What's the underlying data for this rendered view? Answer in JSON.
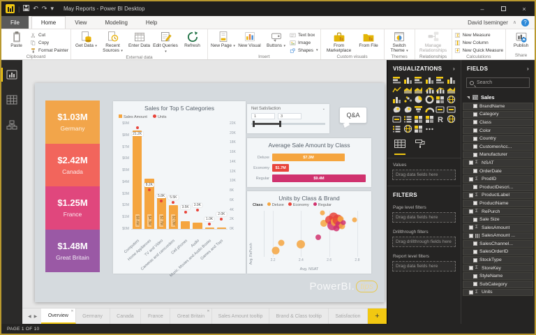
{
  "window": {
    "title": "May Reports - Power BI Desktop"
  },
  "titlebar": {
    "quick_access_icons": [
      "power-bi-logo",
      "save-icon",
      "undo-icon",
      "redo-icon",
      "customize-toolbar-caret"
    ],
    "controls": [
      "minimize",
      "maximize",
      "close"
    ]
  },
  "menubar": {
    "items": [
      "File",
      "Home",
      "View",
      "Modeling",
      "Help"
    ],
    "active": "Home",
    "user": "David Iseminger"
  },
  "ribbon": {
    "groups": [
      {
        "label": "Clipboard",
        "items": [
          {
            "type": "big",
            "label": "Paste",
            "icon": "paste"
          },
          {
            "type": "stack",
            "items": [
              {
                "label": "Cut",
                "icon": "cut"
              },
              {
                "label": "Copy",
                "icon": "copy"
              },
              {
                "label": "Format Painter",
                "icon": "format-painter"
              }
            ]
          }
        ]
      },
      {
        "label": "External data",
        "items": [
          {
            "type": "big",
            "label": "Get Data",
            "icon": "get-data",
            "caret": true
          },
          {
            "type": "big",
            "label": "Recent Sources",
            "icon": "recent-sources",
            "caret": true
          },
          {
            "type": "big",
            "label": "Enter Data",
            "icon": "enter-data"
          },
          {
            "type": "big",
            "label": "Edit Queries",
            "icon": "edit-queries",
            "caret": true
          },
          {
            "type": "big",
            "label": "Refresh",
            "icon": "refresh"
          }
        ]
      },
      {
        "label": "Insert",
        "items": [
          {
            "type": "big",
            "label": "New Page",
            "icon": "new-page",
            "caret": true
          },
          {
            "type": "big",
            "label": "New Visual",
            "icon": "new-visual"
          },
          {
            "type": "big",
            "label": "Buttons",
            "icon": "buttons",
            "caret": true
          },
          {
            "type": "stack",
            "items": [
              {
                "label": "Text box",
                "icon": "text-box"
              },
              {
                "label": "Image",
                "icon": "image"
              },
              {
                "label": "Shapes",
                "icon": "shapes",
                "caret": true
              }
            ]
          }
        ]
      },
      {
        "label": "Custom visuals",
        "items": [
          {
            "type": "big",
            "label": "From Marketplace",
            "icon": "from-marketplace",
            "wide": true
          },
          {
            "type": "big",
            "label": "From File",
            "icon": "from-file"
          }
        ]
      },
      {
        "label": "Themes",
        "items": [
          {
            "type": "big",
            "label": "Switch Theme",
            "icon": "switch-theme",
            "caret": true
          }
        ]
      },
      {
        "label": "Relationships",
        "items": [
          {
            "type": "big",
            "label": "Manage Relationships",
            "icon": "manage-relationships",
            "wide": true,
            "disabled": true
          }
        ]
      },
      {
        "label": "Calculations",
        "items": [
          {
            "type": "stack",
            "items": [
              {
                "label": "New Measure",
                "icon": "new-measure"
              },
              {
                "label": "New Column",
                "icon": "new-column"
              },
              {
                "label": "New Quick Measure",
                "icon": "new-quick-measure"
              }
            ]
          }
        ]
      },
      {
        "label": "Share",
        "items": [
          {
            "type": "big",
            "label": "Publish",
            "icon": "publish"
          }
        ]
      }
    ]
  },
  "leftrail": {
    "items": [
      {
        "name": "report-view",
        "active": true
      },
      {
        "name": "data-view"
      },
      {
        "name": "model-view"
      }
    ]
  },
  "report": {
    "kpi_cards": [
      {
        "value": "$1.03M",
        "label": "Germany",
        "color": "#F2A54A"
      },
      {
        "value": "$2.42M",
        "label": "Canada",
        "color": "#F2655C"
      },
      {
        "value": "$1.25M",
        "label": "France",
        "color": "#E0477D"
      },
      {
        "value": "$1.48M",
        "label": "Great Britain",
        "color": "#9A59A5"
      }
    ],
    "sales_chart": {
      "type": "combo-column-line",
      "title": "Sales for Top 5 Categories",
      "legend": [
        {
          "label": "Sales Amount",
          "color": "#F5A53F",
          "shape": "square"
        },
        {
          "label": "Units",
          "color": "#E8443A",
          "shape": "dot"
        }
      ],
      "categories": [
        "Computers",
        "Home Appliances",
        "TV and Video",
        "Cameras and camcorders",
        "Cell phones",
        "Audio",
        "Music, Movies and Audio Books",
        "Games and Toys"
      ],
      "series": [
        {
          "name": "Sales Amount",
          "unit": "$M",
          "values": [
            8.4,
            4.3,
            2.7,
            2.0,
            0.65,
            0.55,
            0.12,
            0.1
          ],
          "bar_labels": [
            "$8.4M",
            "$4.3M",
            "$2.7M",
            "$2.0M",
            "",
            "",
            "",
            ""
          ]
        },
        {
          "name": "Units",
          "unit": "K",
          "values": [
            21.2,
            8.2,
            5.8,
            5.5,
            3.5,
            3.9,
            1.0,
            2.0
          ],
          "point_labels": [
            "21.2K",
            "8.2K",
            "5.8K",
            "5.5K",
            "3.5K",
            "3.9K",
            "1.0K",
            "2.0K"
          ]
        }
      ],
      "y_left": {
        "ticks": [
          "$9M",
          "$8M",
          "$7M",
          "$6M",
          "$5M",
          "$4M",
          "$3M",
          "$2M",
          "$1M",
          "$0M"
        ],
        "max": 9
      },
      "y_right": {
        "ticks": [
          "22K",
          "20K",
          "18K",
          "16K",
          "14K",
          "12K",
          "10K",
          "8K",
          "6K",
          "4K",
          "2K",
          "0K"
        ],
        "max": 22
      }
    },
    "slicer": {
      "title": "Net Satisfaction",
      "min_value": "1",
      "max_value": "3"
    },
    "qa_button_label": "Q&A",
    "avg_chart": {
      "type": "bar",
      "title": "Average Sale Amount by Class",
      "categories": [
        "Deluxe",
        "Economy",
        "Regular"
      ],
      "values": [
        7.3,
        1.7,
        9.4
      ],
      "labels": [
        "$7.3M",
        "$1.7M",
        "$9.4M"
      ],
      "colors": [
        "#F5A53F",
        "#E8443A",
        "#D0326E"
      ],
      "max": 9.4
    },
    "scatter_chart": {
      "type": "scatter",
      "title": "Units by Class & Brand",
      "legend_title": "Class",
      "legend": [
        {
          "label": "Deluxe",
          "color": "#F5A53F"
        },
        {
          "label": "Economy",
          "color": "#E8443A"
        },
        {
          "label": "Regular",
          "color": "#D0326E"
        }
      ],
      "xlabel": "Avg. NSAT",
      "ylabel": "Avg. RePurch",
      "x_ticks": [
        "2.2",
        "2.4",
        "2.6",
        "2.8"
      ],
      "x_range": [
        2.14,
        2.86
      ],
      "points": [
        {
          "x": 2.22,
          "y": 0.13,
          "r": 5.5,
          "c": 0
        },
        {
          "x": 2.26,
          "y": 0.3,
          "r": 4.5,
          "c": 0
        },
        {
          "x": 2.4,
          "y": 0.28,
          "r": 6,
          "c": 0
        },
        {
          "x": 2.52,
          "y": 0.42,
          "r": 4,
          "c": 2
        },
        {
          "x": 2.55,
          "y": 0.95,
          "r": 3.5,
          "c": 0
        },
        {
          "x": 2.56,
          "y": 0.72,
          "r": 5,
          "c": 0
        },
        {
          "x": 2.6,
          "y": 0.8,
          "r": 6,
          "c": 1
        },
        {
          "x": 2.62,
          "y": 0.68,
          "r": 7,
          "c": 2
        },
        {
          "x": 2.63,
          "y": 0.86,
          "r": 6.5,
          "c": 1
        },
        {
          "x": 2.64,
          "y": 0.76,
          "r": 6,
          "c": 0
        },
        {
          "x": 2.65,
          "y": 0.62,
          "r": 4.5,
          "c": 2
        },
        {
          "x": 2.66,
          "y": 0.8,
          "r": 7.5,
          "c": 1
        },
        {
          "x": 2.67,
          "y": 0.7,
          "r": 5.5,
          "c": 2
        },
        {
          "x": 2.68,
          "y": 0.82,
          "r": 4.5,
          "c": 0
        },
        {
          "x": 2.69,
          "y": 0.66,
          "r": 4.5,
          "c": 0
        },
        {
          "x": 2.7,
          "y": 0.74,
          "r": 3.5,
          "c": 2
        },
        {
          "x": 2.78,
          "y": 0.8,
          "r": 3.5,
          "c": 0
        }
      ]
    },
    "watermark": {
      "part1": "PowerBI.",
      "part2": "tips"
    }
  },
  "visualizations": {
    "title": "VISUALIZATIONS",
    "visual_types": [
      {
        "name": "stacked-bar-chart",
        "glyph": "bars-h"
      },
      {
        "name": "stacked-column-chart",
        "glyph": "bars-v"
      },
      {
        "name": "clustered-bar-chart",
        "glyph": "bars-h"
      },
      {
        "name": "clustered-column-chart",
        "glyph": "bars-v"
      },
      {
        "name": "100-stacked-bar-chart",
        "glyph": "bars-h"
      },
      {
        "name": "100-stacked-column-chart",
        "glyph": "bars-v"
      },
      {
        "name": "line-chart",
        "glyph": "line"
      },
      {
        "name": "area-chart",
        "glyph": "area"
      },
      {
        "name": "stacked-area-chart",
        "glyph": "area"
      },
      {
        "name": "line-and-stacked-column-chart",
        "glyph": "combo"
      },
      {
        "name": "line-and-clustered-column-chart",
        "glyph": "combo"
      },
      {
        "name": "ribbon-chart",
        "glyph": "area"
      },
      {
        "name": "waterfall-chart",
        "glyph": "bars-v"
      },
      {
        "name": "scatter-chart",
        "glyph": "dots"
      },
      {
        "name": "pie-chart",
        "glyph": "pie"
      },
      {
        "name": "donut-chart",
        "glyph": "donut"
      },
      {
        "name": "treemap",
        "glyph": "grid"
      },
      {
        "name": "map",
        "glyph": "globe"
      },
      {
        "name": "filled-map",
        "glyph": "blob"
      },
      {
        "name": "shape-map",
        "glyph": "blob"
      },
      {
        "name": "funnel",
        "glyph": "funnel"
      },
      {
        "name": "gauge",
        "glyph": "gauge"
      },
      {
        "name": "card",
        "glyph": "card"
      },
      {
        "name": "multi-row-card",
        "glyph": "card"
      },
      {
        "name": "kpi",
        "glyph": "card"
      },
      {
        "name": "slicer",
        "glyph": "slicer"
      },
      {
        "name": "table",
        "glyph": "grid"
      },
      {
        "name": "matrix",
        "glyph": "grid"
      },
      {
        "name": "r-script-visual",
        "glyph": "letter-r"
      },
      {
        "name": "arcgis-map",
        "glyph": "globe"
      },
      {
        "name": "key-influencers",
        "glyph": "slicer"
      },
      {
        "name": "power-apps",
        "glyph": "globe"
      },
      {
        "name": "custom-visual",
        "glyph": "grid"
      },
      {
        "name": "more-options",
        "glyph": "ellipsis"
      }
    ],
    "tabs": [
      {
        "name": "fields-tab",
        "active": true
      },
      {
        "name": "format-tab"
      }
    ],
    "values_label": "Values",
    "values_placeholder": "Drag data fields here"
  },
  "filters": {
    "title": "FILTERS",
    "sections": [
      {
        "label": "Page level filters",
        "placeholder": "Drag data fields here"
      },
      {
        "label": "Drillthrough filters",
        "placeholder": "Drag drillthrough fields here"
      },
      {
        "label": "Report level filters",
        "placeholder": "Drag data fields here"
      }
    ]
  },
  "fields": {
    "title": "FIELDS",
    "search_placeholder": "Search",
    "tables": [
      {
        "name": "Sales",
        "expanded": true,
        "fields": [
          {
            "name": "BrandName"
          },
          {
            "name": "Category"
          },
          {
            "name": "Class"
          },
          {
            "name": "Color"
          },
          {
            "name": "Country"
          },
          {
            "name": "CustomerAcc..."
          },
          {
            "name": "Manufacturer"
          },
          {
            "name": "NSAT",
            "sigma": true
          },
          {
            "name": "OrderDate"
          },
          {
            "name": "ProdID",
            "sigma": true
          },
          {
            "name": "ProductDescri..."
          },
          {
            "name": "ProductLabel",
            "sigma": true
          },
          {
            "name": "ProductName"
          },
          {
            "name": "RePurch",
            "sigma": true
          },
          {
            "name": "Sale Size"
          },
          {
            "name": "SalesAmount",
            "sigma": true
          },
          {
            "name": "SalesAmount ...",
            "bars": true
          },
          {
            "name": "SalesChannel..."
          },
          {
            "name": "SalesOrderID"
          },
          {
            "name": "StockType"
          },
          {
            "name": "StoreKey",
            "sigma": true
          },
          {
            "name": "StyleName"
          },
          {
            "name": "SubCategory"
          },
          {
            "name": "Units",
            "sigma": true
          }
        ]
      }
    ]
  },
  "pages": {
    "tabs": [
      {
        "label": "Overview",
        "active": true,
        "closable": true
      },
      {
        "label": "Germany"
      },
      {
        "label": "Canada"
      },
      {
        "label": "France"
      },
      {
        "label": "Great Britain",
        "closable": true
      },
      {
        "label": "Sales Amount tooltip"
      },
      {
        "label": "Brand & Class tooltip"
      },
      {
        "label": "Satisfaction"
      }
    ],
    "add_button": "+"
  },
  "statusbar": {
    "text": "PAGE 1 OF 10"
  },
  "colors": {
    "brand_yellow": "#F2C811",
    "panel_dark": "#252423",
    "bar_orange": "#F5A53F",
    "dot_red": "#E8443A",
    "magenta": "#D0326E"
  }
}
